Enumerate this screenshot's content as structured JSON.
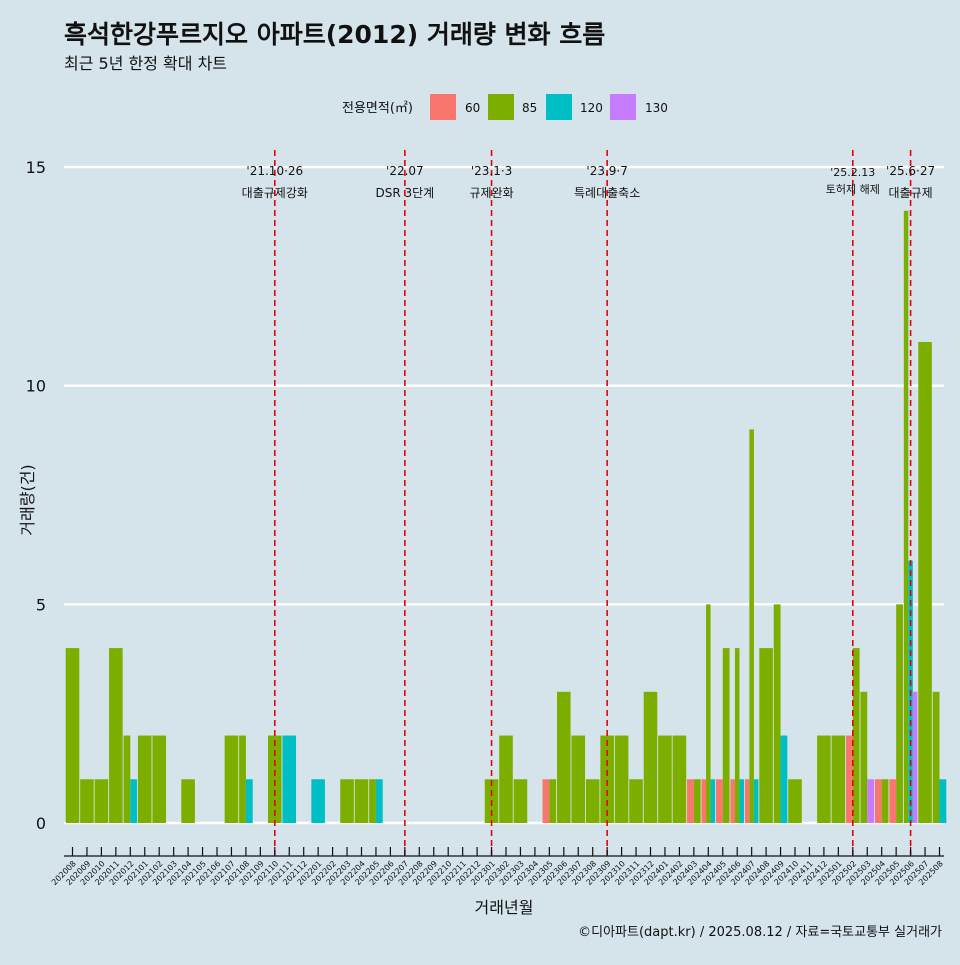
{
  "title": "흑석한강푸르지오 아파트(2012) 거래량 변화 흐름",
  "subtitle": "최근 5년 한정 확대 차트",
  "legend_title": "전용면적(㎡)",
  "caption": "©디아파트(dapt.kr) / 2025.08.12 / 자료=국토교통부 실거래가",
  "colors": {
    "60": "#f8766d",
    "85": "#7cae00",
    "120": "#00bfc4",
    "130": "#c77cff"
  },
  "chart_data": {
    "type": "bar",
    "xlabel": "거래년월",
    "ylabel": "거래량(건)",
    "ylim": [
      0,
      15
    ],
    "yticks": [
      0,
      5,
      10,
      15
    ],
    "legend_position": "top",
    "grid": true,
    "categories": [
      "202008",
      "202009",
      "202010",
      "202011",
      "202012",
      "202101",
      "202102",
      "202103",
      "202104",
      "202105",
      "202106",
      "202107",
      "202108",
      "202109",
      "202110",
      "202111",
      "202112",
      "202201",
      "202202",
      "202203",
      "202204",
      "202205",
      "202206",
      "202207",
      "202208",
      "202209",
      "202210",
      "202211",
      "202212",
      "202301",
      "202302",
      "202303",
      "202304",
      "202305",
      "202306",
      "202307",
      "202308",
      "202309",
      "202310",
      "202311",
      "202312",
      "202401",
      "202402",
      "202403",
      "202404",
      "202405",
      "202406",
      "202407",
      "202408",
      "202409",
      "202410",
      "202411",
      "202412",
      "202501",
      "202502",
      "202503",
      "202504",
      "202505",
      "202506",
      "202507",
      "202508"
    ],
    "series": [
      {
        "name": "60",
        "values": {
          "202305": 1,
          "202403": 1,
          "202404": 1,
          "202405": 1,
          "202406": 1,
          "202407": 1,
          "202502": 2,
          "202504": 1,
          "202505": 1
        }
      },
      {
        "name": "85",
        "values": {
          "202008": 4,
          "202009": 1,
          "202010": 1,
          "202011": 4,
          "202012": 2,
          "202101": 2,
          "202102": 2,
          "202104": 1,
          "202107": 2,
          "202108": 2,
          "202110": 2,
          "202203": 1,
          "202204": 1,
          "202205": 1,
          "202301": 1,
          "202302": 2,
          "202303": 1,
          "202305": 1,
          "202306": 3,
          "202307": 2,
          "202308": 1,
          "202309": 2,
          "202310": 2,
          "202311": 1,
          "202312": 3,
          "202401": 2,
          "202402": 2,
          "202403": 1,
          "202404": 5,
          "202405": 4,
          "202406": 4,
          "202407": 9,
          "202408": 4,
          "202409": 5,
          "202410": 1,
          "202412": 2,
          "202501": 2,
          "202502": 4,
          "202503": 3,
          "202504": 1,
          "202505": 5,
          "202506": 14,
          "202507": 11,
          "202508": 3
        }
      },
      {
        "name": "120",
        "values": {
          "202012": 1,
          "202108": 1,
          "202111": 2,
          "202201": 1,
          "202205": 1,
          "202404": 1,
          "202406": 1,
          "202407": 1,
          "202409": 2,
          "202506": 6,
          "202508": 1
        }
      },
      {
        "name": "130",
        "values": {
          "202503": 1,
          "202506": 3
        }
      }
    ],
    "events": [
      {
        "date": "202110",
        "label_date": "'21.10·26",
        "label_text": "대출규제강화"
      },
      {
        "date": "202207",
        "label_date": "'22.07",
        "label_text": "DSR 3단계"
      },
      {
        "date": "202301",
        "label_date": "'23.1·3",
        "label_text": "규제완화"
      },
      {
        "date": "202309",
        "label_date": "'23.9·7",
        "label_text": "특례대출축소"
      },
      {
        "date": "202502",
        "label_date": "'25.2.13",
        "label_text": "토허제 해제"
      },
      {
        "date": "202506",
        "label_date": "'25.6·27",
        "label_text": "대출규제"
      }
    ]
  }
}
